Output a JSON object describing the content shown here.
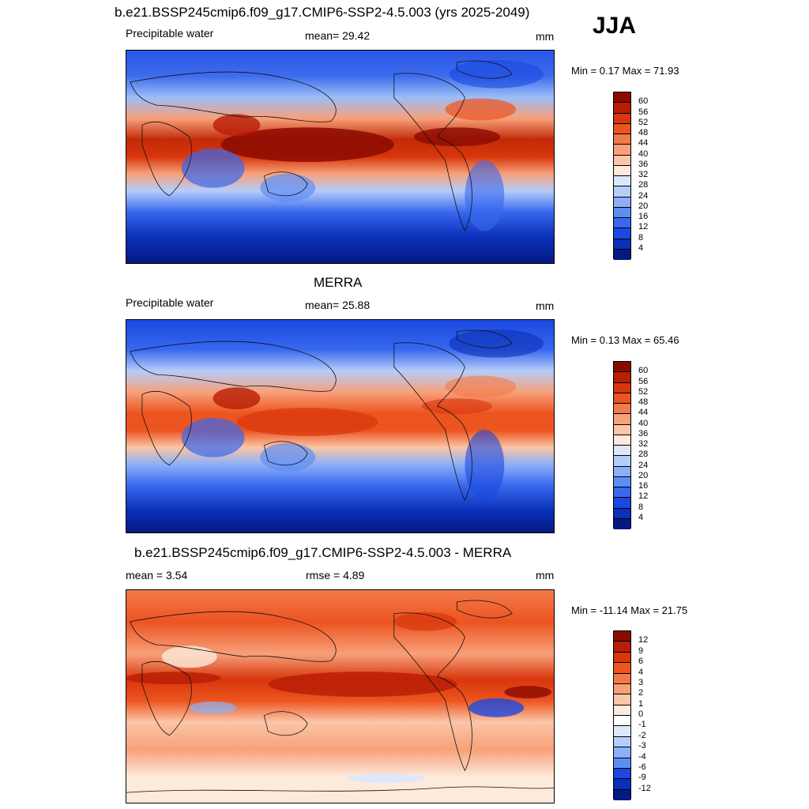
{
  "season": "JJA",
  "panels": [
    {
      "title": "b.e21.BSSP245cmip6.f09_g17.CMIP6-SSP2-4.5.003 (yrs 2025-2049)",
      "left_label": "Precipitable water",
      "center_label": "mean=  29.42",
      "units": "mm",
      "minmax": "Min =   0.17 Max =  71.93"
    },
    {
      "title": "MERRA",
      "left_label": "Precipitable water",
      "center_label": "mean=  25.88",
      "units": "mm",
      "minmax": "Min =   0.13 Max =  65.46"
    },
    {
      "title": "b.e21.BSSP245cmip6.f09_g17.CMIP6-SSP2-4.5.003 - MERRA",
      "left_label": "mean =   3.54",
      "center_label": "rmse =   4.89",
      "units": "mm",
      "minmax": "Min = -11.14 Max =  21.75"
    }
  ],
  "colorbars": {
    "abs": {
      "labels": [
        "60",
        "56",
        "52",
        "48",
        "44",
        "40",
        "36",
        "32",
        "28",
        "24",
        "20",
        "16",
        "12",
        "8",
        "4"
      ],
      "colors": [
        "#8b0a00",
        "#b81d05",
        "#d8360c",
        "#ec5420",
        "#f27a4a",
        "#f7a07a",
        "#fbc6a7",
        "#fdeadb",
        "#dbe8fb",
        "#b5cdfa",
        "#8cb0f7",
        "#5f8ef3",
        "#3868ee",
        "#1b48e0",
        "#0a2fb8",
        "#031a80"
      ]
    },
    "diff": {
      "labels": [
        "12",
        "9",
        "6",
        "4",
        "3",
        "2",
        "1",
        "0",
        "-1",
        "-2",
        "-3",
        "-4",
        "-6",
        "-9",
        "-12"
      ],
      "colors": [
        "#8b0a00",
        "#b81d05",
        "#d8360c",
        "#ec5420",
        "#f27a4a",
        "#f7a07a",
        "#fbc6a7",
        "#fdeadb",
        "#ffffff",
        "#dbe8fb",
        "#b5cdfa",
        "#8cb0f7",
        "#5f8ef3",
        "#1b48e0",
        "#0a2fb8",
        "#031a80"
      ]
    }
  }
}
